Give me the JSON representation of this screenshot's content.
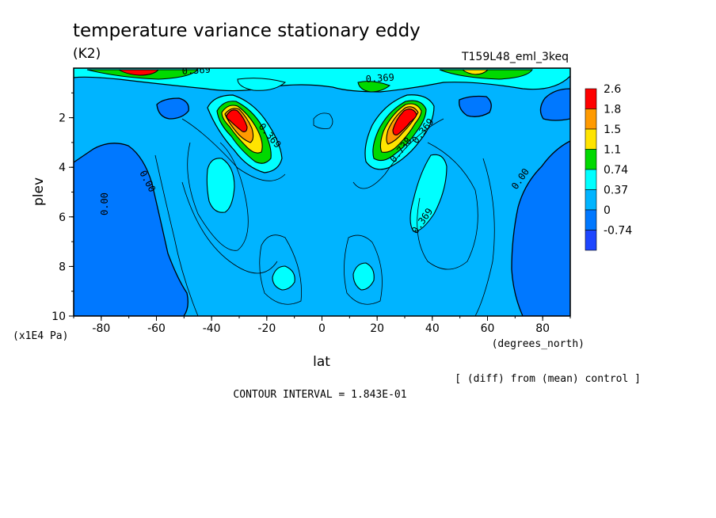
{
  "chart_data": {
    "type": "heatmap",
    "title": "temperature variance stationary eddy",
    "units": "(K2)",
    "run_label": "T159L48_eml_3keq",
    "xlabel": "lat",
    "x_units": "(degrees_north)",
    "ylabel": "plev",
    "y_units": "(x1E4 Pa)",
    "xlim": [
      -90,
      90
    ],
    "ylim": [
      10,
      0
    ],
    "x_ticks": [
      -80,
      -60,
      -40,
      -20,
      0,
      20,
      40,
      60,
      80
    ],
    "y_ticks": [
      2,
      4,
      6,
      8,
      10
    ],
    "colorbar": {
      "labels": [
        "2.6",
        "1.8",
        "1.5",
        "1.1",
        "0.74",
        "0.37",
        "0",
        "-0.74"
      ],
      "colors": [
        "#ff0000",
        "#ff9a00",
        "#ffe400",
        "#00d900",
        "#00ffff",
        "#00b4ff",
        "#0078ff",
        "#1e46ff"
      ]
    },
    "contour_labels": [
      "0.369",
      "0.369",
      "0.369",
      "0.369",
      "0.369",
      "0.00",
      "0.00",
      "0.00",
      "0.738"
    ],
    "comparison_note": "[ (diff) from (mean) control ]",
    "contour_interval": "CONTOUR INTERVAL = 1.843E-01"
  }
}
